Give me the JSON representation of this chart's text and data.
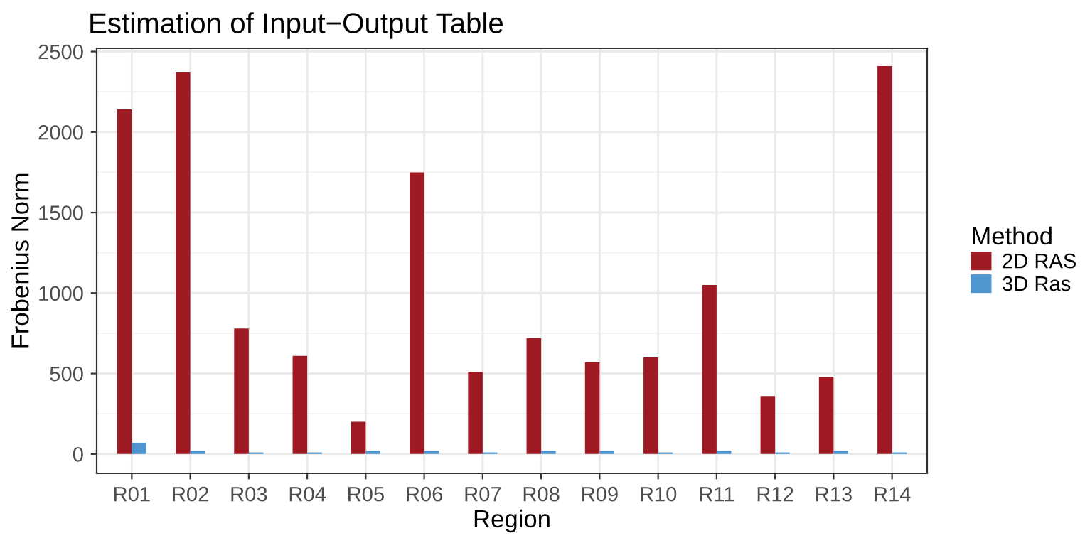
{
  "chart_data": {
    "type": "bar",
    "title": "Estimation of Input−Output Table",
    "xlabel": "Region",
    "ylabel": "Frobenius Norm",
    "legend_title": "Method",
    "categories": [
      "R01",
      "R02",
      "R03",
      "R04",
      "R05",
      "R06",
      "R07",
      "R08",
      "R09",
      "R10",
      "R11",
      "R12",
      "R13",
      "R14"
    ],
    "series": [
      {
        "name": "2D RAS",
        "color": "#9e1a23",
        "values": [
          2140,
          2370,
          780,
          610,
          200,
          1750,
          510,
          720,
          570,
          600,
          1050,
          360,
          480,
          2410
        ]
      },
      {
        "name": "3D Ras",
        "color": "#4f96d0",
        "values": [
          70,
          20,
          10,
          10,
          20,
          20,
          10,
          20,
          20,
          10,
          20,
          10,
          20,
          10
        ]
      }
    ],
    "ylim": [
      -120,
      2520
    ],
    "yticks": [
      0,
      500,
      1000,
      1500,
      2000,
      2500
    ],
    "grid": true,
    "legend": "right"
  }
}
